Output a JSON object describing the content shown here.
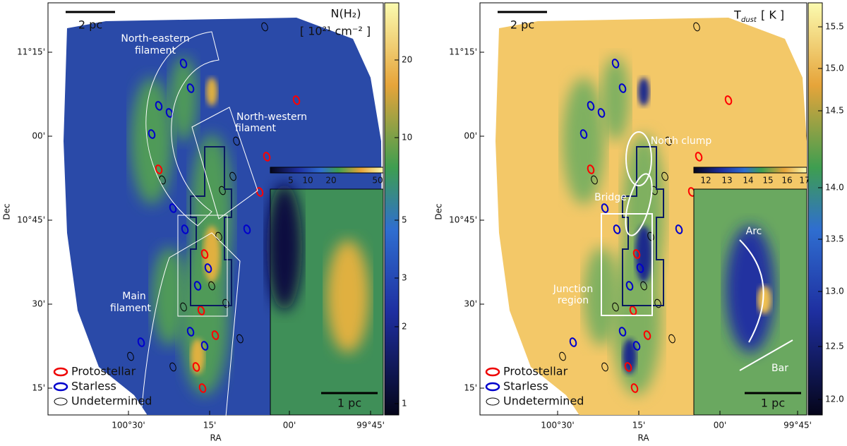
{
  "panels": [
    {
      "title": "N(H₂)",
      "subtitle": "[ 10²¹ cm⁻² ]",
      "scalebar": "2 pc",
      "xlabel": "RA",
      "ylabel": "Dec",
      "xticks": [
        "100°30'",
        "15'",
        "00'",
        "99°45'"
      ],
      "yticks": [
        "11°15'",
        "00'",
        "10°45'",
        "30'",
        "15'"
      ],
      "colorbar_ticks": [
        "20",
        "10",
        "5",
        "3",
        "2",
        "1"
      ],
      "inset_colorbar_ticks": [
        "5",
        "10",
        "20",
        "50"
      ],
      "inset_scalebar": "1 pc",
      "annotations": [
        "North-eastern",
        "filament",
        "North-western",
        "filament",
        "Main",
        "filament"
      ],
      "legend": [
        "Protostellar",
        "Starless",
        "Undetermined"
      ]
    },
    {
      "title": "T",
      "title_subscript": "dust",
      "subtitle": "[ K ]",
      "scalebar": "2 pc",
      "xlabel": "RA",
      "ylabel": "Dec",
      "xticks": [
        "100°30'",
        "15'",
        "00'",
        "99°45'"
      ],
      "yticks": [
        "11°15'",
        "00'",
        "10°45'",
        "30'",
        "15'"
      ],
      "colorbar_ticks": [
        "15.5",
        "15.0",
        "14.5",
        "14.0",
        "13.5",
        "13.0",
        "12.5",
        "12.0"
      ],
      "inset_colorbar_ticks": [
        "12",
        "13",
        "14",
        "15",
        "16",
        "17"
      ],
      "inset_scalebar": "1 pc",
      "annotations": [
        "North clump",
        "Bridge",
        "Junction",
        "region",
        "Arc",
        "Bar"
      ],
      "legend": [
        "Protostellar",
        "Starless",
        "Undetermined"
      ]
    }
  ]
}
